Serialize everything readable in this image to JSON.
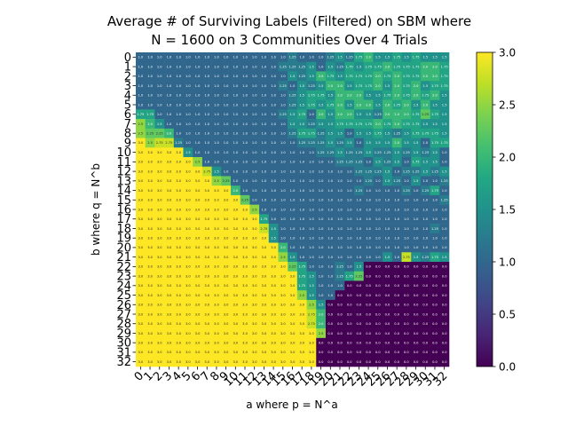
{
  "chart_data": {
    "type": "heatmap",
    "title_line1": "Average # of Surviving Labels (Filtered) on SBM where",
    "title_line2": "N = 1600 on 3 Communities Over 4 Trials",
    "xlabel": "a where p = N^a",
    "ylabel": "b where q = N^b",
    "x_ticks": [
      "0",
      "1",
      "2",
      "3",
      "4",
      "5",
      "6",
      "7",
      "8",
      "9",
      "10",
      "11",
      "12",
      "13",
      "14",
      "15",
      "16",
      "17",
      "18",
      "19",
      "20",
      "21",
      "22",
      "23",
      "24",
      "25",
      "26",
      "27",
      "28",
      "29",
      "30",
      "31",
      "32"
    ],
    "y_ticks": [
      "0",
      "1",
      "2",
      "3",
      "4",
      "5",
      "6",
      "7",
      "8",
      "9",
      "10",
      "11",
      "12",
      "13",
      "14",
      "15",
      "16",
      "17",
      "18",
      "19",
      "20",
      "21",
      "22",
      "23",
      "24",
      "25",
      "26",
      "27",
      "28",
      "29",
      "30",
      "31",
      "32"
    ],
    "colorbar_ticks": [
      "0.0",
      "0.5",
      "1.0",
      "1.5",
      "2.0",
      "2.5",
      "3.0"
    ],
    "value_range": [
      0,
      3
    ],
    "colormap": "viridis",
    "values": [
      [
        1,
        1,
        1,
        1,
        1,
        1,
        1,
        1,
        1,
        1,
        1,
        1,
        1,
        1,
        1,
        1,
        1.25,
        1,
        1,
        1,
        1.25,
        1.5,
        1.25,
        1.75,
        2,
        1.5,
        1.5,
        1.75,
        1.5,
        1.75,
        1.5,
        1.5,
        1.5
      ],
      [
        1,
        1,
        1,
        1,
        1,
        1,
        1,
        1,
        1,
        1,
        1,
        1,
        1,
        1,
        1,
        1.25,
        1.25,
        1.25,
        1.5,
        1,
        1.5,
        1.25,
        1.75,
        1.5,
        1.75,
        1.75,
        2,
        1.75,
        1.75,
        1.75,
        2,
        2,
        1.75
      ],
      [
        1,
        1,
        1,
        1,
        1,
        1,
        1,
        1,
        1,
        1,
        1,
        1,
        1,
        1,
        1,
        1,
        1.5,
        1.25,
        1.5,
        2,
        1.75,
        1.5,
        1.75,
        1.75,
        1.75,
        2,
        1.75,
        2,
        1.75,
        1.75,
        2,
        2,
        1.75
      ],
      [
        1,
        1,
        1,
        1,
        1,
        1,
        1,
        1,
        1,
        1,
        1,
        1,
        1,
        1,
        1,
        1.25,
        1,
        1.5,
        1.25,
        1.5,
        2,
        2,
        1.5,
        1.75,
        1.75,
        2,
        1.5,
        2,
        1.75,
        2,
        1.5,
        1.75,
        1.75
      ],
      [
        1,
        1,
        1,
        1,
        1,
        1,
        1,
        1,
        1,
        1,
        1,
        1,
        1,
        1,
        1,
        1,
        1.25,
        1.5,
        1.75,
        1.75,
        1.5,
        2,
        2,
        2,
        1.5,
        1.5,
        1.75,
        2,
        1.75,
        2,
        1.75,
        2,
        1.5
      ],
      [
        1,
        1,
        1,
        1,
        1,
        1,
        1,
        1,
        1,
        1,
        1,
        1,
        1,
        1,
        1,
        1,
        1.25,
        1.5,
        1.75,
        1.5,
        1.75,
        2,
        1.5,
        2,
        2,
        1.5,
        2,
        1.75,
        2,
        1.5,
        2,
        1.5,
        1.5
      ],
      [
        1.75,
        1.75,
        1,
        1,
        1,
        1,
        1,
        1,
        1,
        1,
        1,
        1,
        1,
        1,
        1,
        1.25,
        1.5,
        1.75,
        1,
        2,
        1.5,
        2,
        2,
        1.5,
        1.5,
        1.25,
        2,
        2,
        2,
        1.75,
        2.25,
        1.75,
        1.5
      ],
      [
        2.5,
        2,
        1.5,
        1,
        1,
        1,
        1,
        1,
        1,
        1,
        1,
        1,
        1,
        1,
        1,
        1,
        1.5,
        1.5,
        1.25,
        1.5,
        1.5,
        1.75,
        1.75,
        1.75,
        1.75,
        2,
        1.75,
        2,
        1.75,
        1.75,
        1.5,
        1.5,
        1.5
      ],
      [
        2.5,
        2.25,
        2.25,
        2,
        1,
        1,
        1,
        1,
        1,
        1,
        1,
        1,
        1,
        1,
        1,
        1,
        1.25,
        1.75,
        1.75,
        1.25,
        1.5,
        1.5,
        1,
        1.5,
        1.5,
        1.75,
        1.5,
        1.25,
        1.5,
        1.75,
        1.75,
        1.75,
        1.5
      ],
      [
        3,
        2.5,
        2.75,
        2.75,
        1.25,
        1,
        1,
        1,
        1,
        1,
        1,
        1,
        1,
        1,
        1,
        1,
        1,
        1.25,
        1.25,
        1.25,
        1.5,
        1.25,
        1.5,
        1,
        1.5,
        1.5,
        1.5,
        2,
        1.5,
        1.5,
        1,
        1.75,
        1.75
      ],
      [
        3,
        3,
        3,
        3,
        3,
        1.5,
        1,
        1,
        1,
        1,
        1,
        1,
        1,
        1,
        1,
        1,
        1,
        1,
        1,
        1.25,
        1.25,
        1.5,
        1.25,
        1.25,
        1.5,
        1.25,
        1.25,
        1.5,
        1.25,
        1.5,
        1.25,
        1.5,
        1
      ],
      [
        3,
        3,
        3,
        3,
        3,
        3,
        2.5,
        1,
        1,
        1,
        1,
        1,
        1,
        1,
        1,
        1,
        1,
        1,
        1,
        1,
        1,
        1.25,
        1.25,
        1.25,
        1,
        1.5,
        1.25,
        1.5,
        1,
        1.75,
        1.5,
        1.5,
        1
      ],
      [
        3,
        3,
        3,
        3,
        3,
        3,
        3,
        2.75,
        1.5,
        1,
        1,
        1,
        1,
        1,
        1,
        1,
        1,
        1,
        1,
        1,
        1,
        1,
        1,
        1.25,
        1.25,
        1.25,
        1.5,
        1,
        1.25,
        1.25,
        1.5,
        1.25,
        1.5
      ],
      [
        3,
        3,
        3,
        3,
        3,
        3,
        3,
        3,
        2.5,
        2.25,
        1,
        1,
        1,
        1,
        1,
        1,
        1,
        1,
        1,
        1,
        1,
        1,
        1,
        1,
        1.25,
        1,
        1.5,
        1.25,
        1,
        1.5,
        1,
        1,
        1.25
      ],
      [
        3,
        3,
        3,
        3,
        3,
        3,
        3,
        3,
        3,
        3,
        2,
        1,
        1,
        1,
        1,
        1,
        1,
        1,
        1,
        1,
        1,
        1,
        1,
        1.25,
        1,
        1,
        1,
        1,
        1.25,
        1,
        1.25,
        1.75,
        1
      ],
      [
        3,
        3,
        3,
        3,
        3,
        3,
        3,
        3,
        3,
        3,
        3,
        2.25,
        1,
        1,
        1,
        1,
        1,
        1,
        1,
        1,
        1,
        1,
        1,
        1,
        1,
        1,
        1,
        1,
        1,
        1,
        1,
        1,
        1.25
      ],
      [
        3,
        3,
        3,
        3,
        3,
        3,
        3,
        3,
        3,
        3,
        3,
        3,
        2.5,
        1,
        1,
        1,
        1,
        1,
        1,
        1,
        1,
        1,
        1,
        1,
        1,
        1,
        1,
        1,
        1,
        1,
        1,
        1,
        1
      ],
      [
        3,
        3,
        3,
        3,
        3,
        3,
        3,
        3,
        3,
        3,
        3,
        3,
        3,
        1.75,
        1,
        1,
        1,
        1,
        1,
        1,
        1,
        1,
        1,
        1,
        1,
        1,
        1,
        1,
        1,
        1,
        1,
        1,
        1
      ],
      [
        3,
        3,
        3,
        3,
        3,
        3,
        3,
        3,
        3,
        3,
        3,
        3,
        3,
        2.75,
        1.5,
        1,
        1,
        1,
        1,
        1,
        1,
        1,
        1,
        1,
        1,
        1,
        1,
        1,
        1,
        1,
        1,
        1.25,
        1
      ],
      [
        3,
        3,
        3,
        3,
        3,
        3,
        3,
        3,
        3,
        3,
        3,
        3,
        3,
        3,
        1.5,
        1,
        1,
        1,
        1,
        1,
        1,
        1,
        1,
        1,
        1,
        1,
        1,
        1,
        1,
        1,
        1,
        1,
        1
      ],
      [
        3,
        3,
        3,
        3,
        3,
        3,
        3,
        3,
        3,
        3,
        3,
        3,
        3,
        3,
        3,
        2,
        1,
        1,
        1,
        1,
        1,
        1,
        1,
        1,
        1,
        1,
        1,
        1,
        1,
        1,
        1,
        1,
        1
      ],
      [
        3,
        3,
        3,
        3,
        3,
        3,
        3,
        3,
        3,
        3,
        3,
        3,
        3,
        3,
        3,
        2.5,
        1.5,
        1,
        1,
        1,
        1,
        1,
        1,
        1,
        1,
        1,
        1.5,
        1,
        2.75,
        1.5,
        1.25,
        1.75,
        1.5
      ],
      [
        3,
        3,
        3,
        3,
        3,
        3,
        3,
        3,
        3,
        3,
        3,
        3,
        3,
        3,
        3,
        3,
        2.25,
        1.75,
        1,
        1,
        1,
        1.25,
        1,
        1.5,
        0,
        0,
        0,
        0,
        0,
        0,
        0,
        0,
        0
      ],
      [
        3,
        3,
        3,
        3,
        3,
        3,
        3,
        3,
        3,
        3,
        3,
        3,
        3,
        3,
        3,
        3,
        3,
        1.75,
        1.5,
        1,
        1,
        1.25,
        1.75,
        2.25,
        0,
        0,
        0,
        0,
        0,
        0,
        0,
        0,
        0
      ],
      [
        3,
        3,
        3,
        3,
        3,
        3,
        3,
        3,
        3,
        3,
        3,
        3,
        3,
        3,
        3,
        3,
        3,
        1.75,
        1.5,
        1,
        1,
        1,
        0,
        0,
        0,
        0,
        0,
        0,
        0,
        0,
        0,
        0,
        0
      ],
      [
        3,
        3,
        3,
        3,
        3,
        3,
        3,
        3,
        3,
        3,
        3,
        3,
        3,
        3,
        3,
        3,
        3,
        2.5,
        1.5,
        1,
        1,
        0,
        0,
        0,
        0,
        0,
        0,
        0,
        0,
        0,
        0,
        0,
        0
      ],
      [
        3,
        3,
        3,
        3,
        3,
        3,
        3,
        3,
        3,
        3,
        3,
        3,
        3,
        3,
        3,
        3,
        3,
        3,
        2.5,
        1.5,
        0,
        0,
        0,
        0,
        0,
        0,
        0,
        0,
        0,
        0,
        0,
        0,
        0
      ],
      [
        3,
        3,
        3,
        3,
        3,
        3,
        3,
        3,
        3,
        3,
        3,
        3,
        3,
        3,
        3,
        3,
        3,
        3,
        2.75,
        2,
        0,
        0,
        0,
        0,
        0,
        0,
        0,
        0,
        0,
        0,
        0,
        0,
        0
      ],
      [
        3,
        3,
        3,
        3,
        3,
        3,
        3,
        3,
        3,
        3,
        3,
        3,
        3,
        3,
        3,
        3,
        3,
        3,
        2.75,
        2,
        0,
        0,
        0,
        0,
        0,
        0,
        0,
        0,
        0,
        0,
        0,
        0,
        0
      ],
      [
        3,
        3,
        3,
        3,
        3,
        3,
        3,
        3,
        3,
        3,
        3,
        3,
        3,
        3,
        3,
        3,
        3,
        3,
        3,
        2.5,
        0,
        0,
        0,
        0,
        0,
        0,
        0,
        0,
        0,
        0,
        0,
        0,
        0
      ],
      [
        3,
        3,
        3,
        3,
        3,
        3,
        3,
        3,
        3,
        3,
        3,
        3,
        3,
        3,
        3,
        3,
        3,
        3,
        3,
        0,
        0,
        0,
        0,
        0,
        0,
        0,
        0,
        0,
        0,
        0,
        0,
        0,
        0
      ],
      [
        3,
        3,
        3,
        3,
        3,
        3,
        3,
        3,
        3,
        3,
        3,
        3,
        3,
        3,
        3,
        3,
        3,
        3,
        3,
        0,
        0,
        0,
        0,
        0,
        0,
        0,
        0,
        0,
        0,
        0,
        0,
        0,
        0
      ],
      [
        3,
        3,
        3,
        3,
        3,
        3,
        3,
        3,
        3,
        3,
        3,
        3,
        3,
        3,
        3,
        3,
        3,
        3,
        3,
        0,
        0,
        0,
        0,
        0,
        0,
        0,
        0,
        0,
        0,
        0,
        0,
        0,
        0
      ]
    ]
  }
}
